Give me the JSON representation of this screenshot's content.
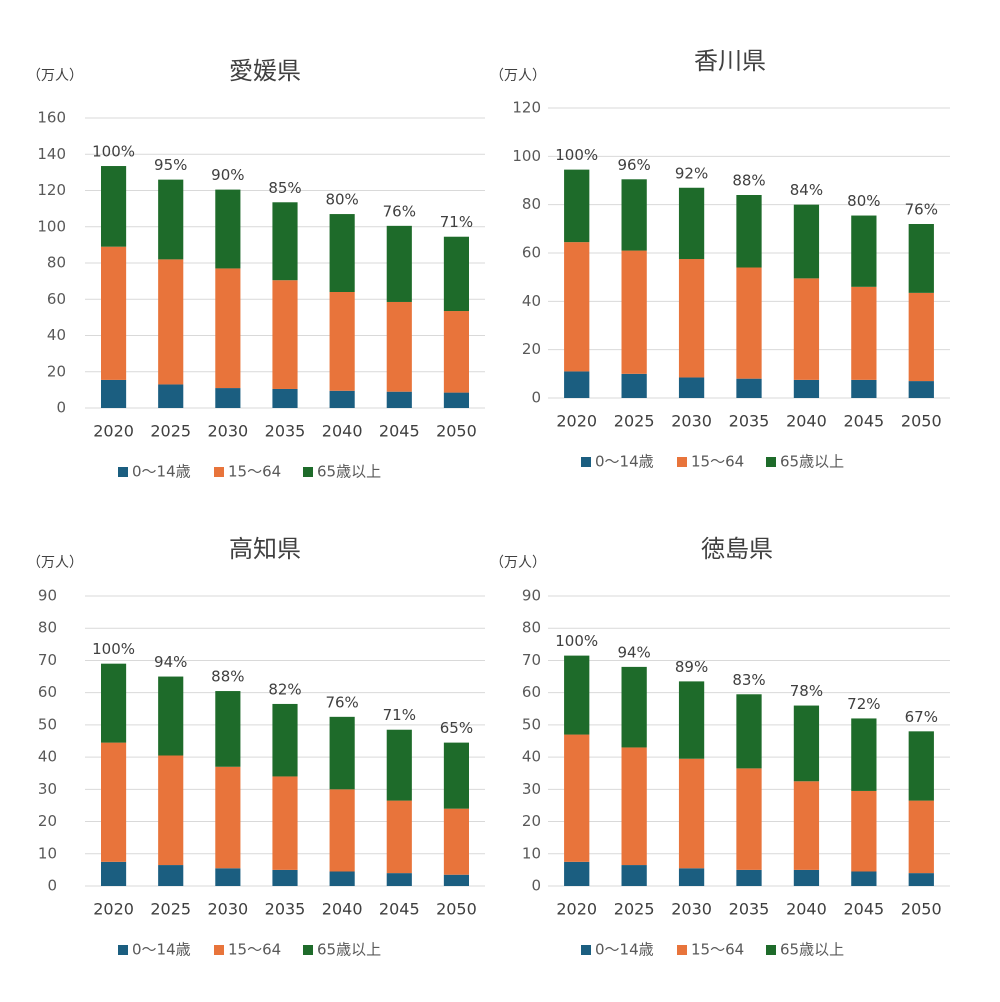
{
  "chart_data": [
    {
      "type": "bar",
      "stacked": true,
      "title": "愛媛県",
      "unit": "（万人）",
      "categories": [
        "2020",
        "2025",
        "2030",
        "2035",
        "2040",
        "2045",
        "2050"
      ],
      "series": [
        {
          "name": "0～14歳",
          "color": "#1b5e80",
          "values": [
            15.5,
            13,
            11,
            10.5,
            9.5,
            9,
            8.5
          ]
        },
        {
          "name": "15～64",
          "color": "#e8743b",
          "values": [
            73.5,
            69,
            66,
            60,
            54.5,
            49.5,
            45
          ]
        },
        {
          "name": "65歳以上",
          "color": "#1e6b2a",
          "values": [
            44.5,
            44,
            43.5,
            43,
            43,
            42,
            41
          ]
        }
      ],
      "annotations": [
        "100%",
        "95%",
        "90%",
        "85%",
        "80%",
        "76%",
        "71%"
      ],
      "ylim": [
        0,
        160
      ],
      "yticks": [
        0,
        20,
        40,
        60,
        80,
        100,
        120,
        140,
        160
      ],
      "grid": true,
      "legend": "bottom"
    },
    {
      "type": "bar",
      "stacked": true,
      "title": "香川県",
      "unit": "（万人）",
      "categories": [
        "2020",
        "2025",
        "2030",
        "2035",
        "2040",
        "2045",
        "2050"
      ],
      "series": [
        {
          "name": "0～14歳",
          "color": "#1b5e80",
          "values": [
            11,
            10,
            8.5,
            8,
            7.5,
            7.5,
            7
          ]
        },
        {
          "name": "15～64",
          "color": "#e8743b",
          "values": [
            53.5,
            51,
            49,
            46,
            42,
            38.5,
            36.5
          ]
        },
        {
          "name": "65歳以上",
          "color": "#1e6b2a",
          "values": [
            30,
            29.5,
            29.5,
            30,
            30.5,
            29.5,
            28.5
          ]
        }
      ],
      "annotations": [
        "100%",
        "96%",
        "92%",
        "88%",
        "84%",
        "80%",
        "76%"
      ],
      "ylim": [
        0,
        120
      ],
      "yticks": [
        0,
        20,
        40,
        60,
        80,
        100,
        120
      ],
      "grid": true,
      "legend": "bottom"
    },
    {
      "type": "bar",
      "stacked": true,
      "title": "高知県",
      "unit": "（万人）",
      "categories": [
        "2020",
        "2025",
        "2030",
        "2035",
        "2040",
        "2045",
        "2050"
      ],
      "series": [
        {
          "name": "0～14歳",
          "color": "#1b5e80",
          "values": [
            7.5,
            6.5,
            5.5,
            5,
            4.5,
            4,
            3.5
          ]
        },
        {
          "name": "15～64",
          "color": "#e8743b",
          "values": [
            37,
            34,
            31.5,
            29,
            25.5,
            22.5,
            20.5
          ]
        },
        {
          "name": "65歳以上",
          "color": "#1e6b2a",
          "values": [
            24.5,
            24.5,
            23.5,
            22.5,
            22.5,
            22,
            20.5
          ]
        }
      ],
      "annotations": [
        "100%",
        "94%",
        "88%",
        "82%",
        "76%",
        "71%",
        "65%"
      ],
      "ylim": [
        0,
        90
      ],
      "yticks": [
        0,
        10,
        20,
        30,
        40,
        50,
        60,
        70,
        80,
        90
      ],
      "grid": true,
      "legend": "bottom"
    },
    {
      "type": "bar",
      "stacked": true,
      "title": "徳島県",
      "unit": "（万人）",
      "categories": [
        "2020",
        "2025",
        "2030",
        "2035",
        "2040",
        "2045",
        "2050"
      ],
      "series": [
        {
          "name": "0～14歳",
          "color": "#1b5e80",
          "values": [
            7.5,
            6.5,
            5.5,
            5,
            5,
            4.5,
            4
          ]
        },
        {
          "name": "15～64",
          "color": "#e8743b",
          "values": [
            39.5,
            36.5,
            34,
            31.5,
            27.5,
            25,
            22.5
          ]
        },
        {
          "name": "65歳以上",
          "color": "#1e6b2a",
          "values": [
            24.5,
            25,
            24,
            23,
            23.5,
            22.5,
            21.5
          ]
        }
      ],
      "annotations": [
        "100%",
        "94%",
        "89%",
        "83%",
        "78%",
        "72%",
        "67%"
      ],
      "ylim": [
        0,
        90
      ],
      "yticks": [
        0,
        10,
        20,
        30,
        40,
        50,
        60,
        70,
        80,
        90
      ],
      "grid": true,
      "legend": "bottom"
    }
  ]
}
